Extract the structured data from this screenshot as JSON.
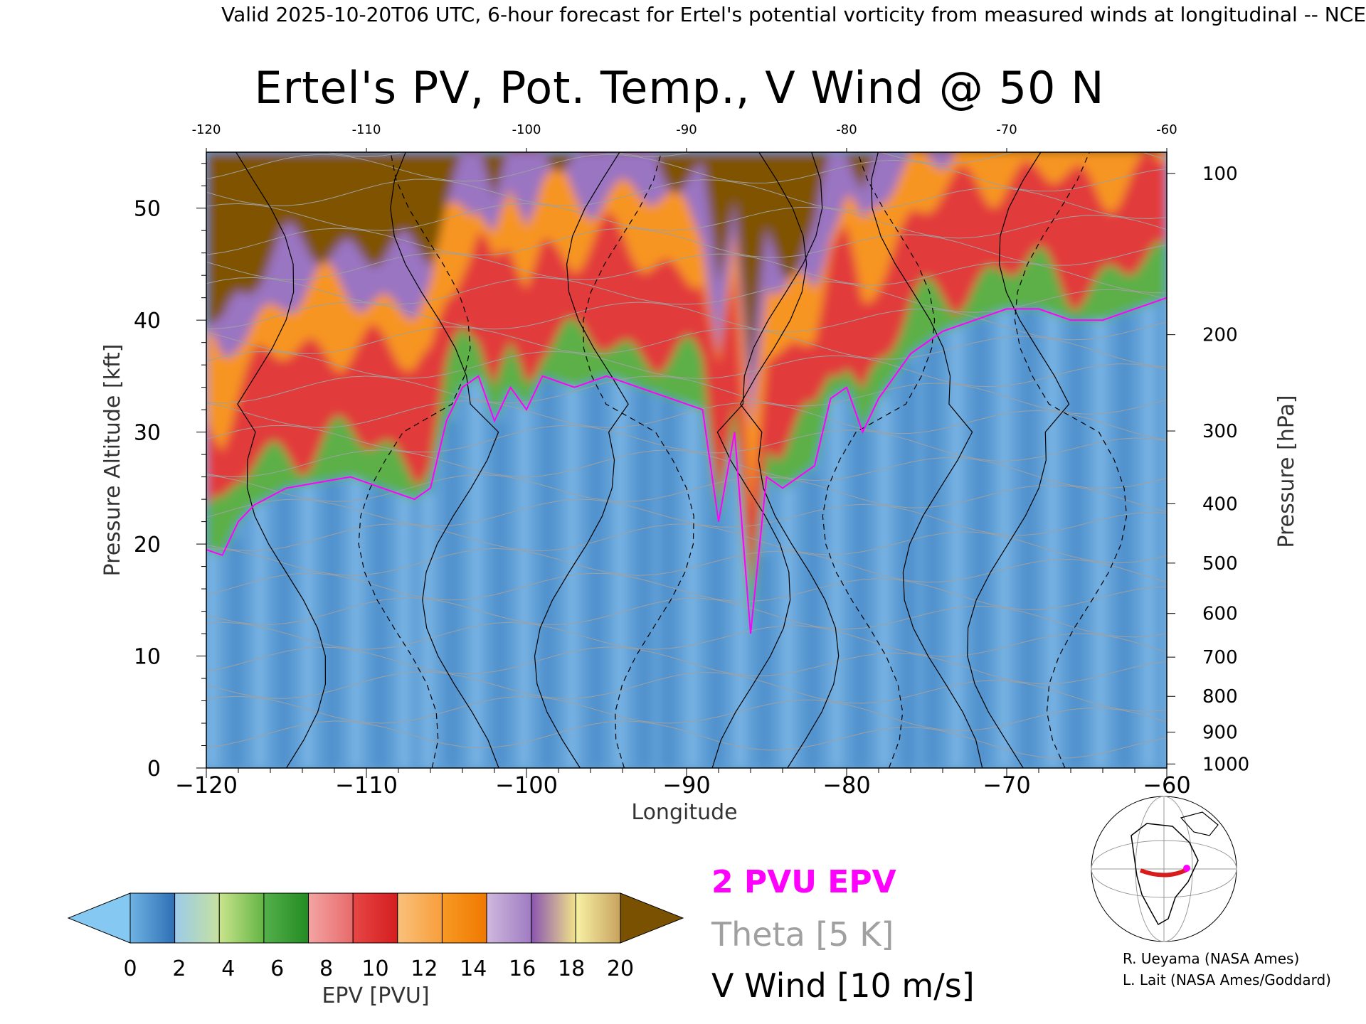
{
  "header": "Valid 2025-10-20T06 UTC, 6-hour forecast for Ertel's potential vorticity from measured winds at longitudinal -- NCE",
  "chart_data": {
    "type": "heatmap",
    "title": "Ertel's PV, Pot. Temp., V Wind @ 50 N",
    "xlabel": "Longitude",
    "ylabel": "Pressure Altitude [kft]",
    "y2label": "Pressure [hPa]",
    "xlim": [
      -120,
      -60
    ],
    "ylim": [
      0,
      55
    ],
    "x_ticks": [
      -120,
      -110,
      -100,
      -90,
      -80,
      -70,
      -60
    ],
    "x_tick_labels": [
      "−120",
      "−110",
      "−100",
      "−90",
      "−80",
      "−70",
      "−60"
    ],
    "top_tick_labels": [
      "-120",
      "-110",
      "-100",
      "-90",
      "-80",
      "-70",
      "-60"
    ],
    "y_ticks": [
      0,
      10,
      20,
      30,
      40,
      50
    ],
    "y_tick_labels": [
      "0",
      "10",
      "20",
      "30",
      "40",
      "50"
    ],
    "pressure_ticks": [
      {
        "hpa": 100,
        "kft": 53.1,
        "label": "100"
      },
      {
        "hpa": 200,
        "kft": 38.7,
        "label": "200"
      },
      {
        "hpa": 300,
        "kft": 30.1,
        "label": "300"
      },
      {
        "hpa": 400,
        "kft": 23.6,
        "label": "400"
      },
      {
        "hpa": 500,
        "kft": 18.3,
        "label": "500"
      },
      {
        "hpa": 600,
        "kft": 13.8,
        "label": "600"
      },
      {
        "hpa": 700,
        "kft": 9.9,
        "label": "700"
      },
      {
        "hpa": 800,
        "kft": 6.4,
        "label": "800"
      },
      {
        "hpa": 900,
        "kft": 3.2,
        "label": "900"
      },
      {
        "hpa": 1000,
        "kft": 0.36,
        "label": "1000"
      }
    ],
    "tropopause_2pvu_kft": [
      {
        "lon": -120,
        "kft": 19.5
      },
      {
        "lon": -119,
        "kft": 19
      },
      {
        "lon": -118,
        "kft": 22
      },
      {
        "lon": -117,
        "kft": 23.5
      },
      {
        "lon": -115,
        "kft": 25
      },
      {
        "lon": -113,
        "kft": 25.5
      },
      {
        "lon": -111,
        "kft": 26
      },
      {
        "lon": -109,
        "kft": 25
      },
      {
        "lon": -107,
        "kft": 24
      },
      {
        "lon": -106,
        "kft": 25
      },
      {
        "lon": -105,
        "kft": 31
      },
      {
        "lon": -104,
        "kft": 34
      },
      {
        "lon": -103,
        "kft": 35
      },
      {
        "lon": -102,
        "kft": 31
      },
      {
        "lon": -101,
        "kft": 34
      },
      {
        "lon": -100,
        "kft": 32
      },
      {
        "lon": -99,
        "kft": 35
      },
      {
        "lon": -97,
        "kft": 34
      },
      {
        "lon": -95,
        "kft": 35
      },
      {
        "lon": -93,
        "kft": 34
      },
      {
        "lon": -91,
        "kft": 33
      },
      {
        "lon": -89,
        "kft": 32
      },
      {
        "lon": -88,
        "kft": 22
      },
      {
        "lon": -87,
        "kft": 30
      },
      {
        "lon": -86,
        "kft": 12
      },
      {
        "lon": -85,
        "kft": 26
      },
      {
        "lon": -84,
        "kft": 25
      },
      {
        "lon": -82,
        "kft": 27
      },
      {
        "lon": -81,
        "kft": 33
      },
      {
        "lon": -80,
        "kft": 34
      },
      {
        "lon": -79,
        "kft": 30
      },
      {
        "lon": -78,
        "kft": 33
      },
      {
        "lon": -77,
        "kft": 35
      },
      {
        "lon": -76,
        "kft": 37
      },
      {
        "lon": -74,
        "kft": 39
      },
      {
        "lon": -72,
        "kft": 40
      },
      {
        "lon": -70,
        "kft": 41
      },
      {
        "lon": -68,
        "kft": 41
      },
      {
        "lon": -66,
        "kft": 40
      },
      {
        "lon": -64,
        "kft": 40
      },
      {
        "lon": -62,
        "kft": 41
      },
      {
        "lon": -60,
        "kft": 42
      }
    ],
    "colorbar": {
      "label": "EPV [PVU]",
      "ticks": [
        "0",
        "2",
        "4",
        "6",
        "8",
        "10",
        "12",
        "14",
        "16",
        "18",
        "20"
      ],
      "under_color": "#85c9f2",
      "over_color": "#7a5100",
      "bins": [
        [
          "#6fb3e3",
          "#2f6fb5"
        ],
        [
          "#9ccbea",
          "#c6e1a0"
        ],
        [
          "#c9e48c",
          "#64b544"
        ],
        [
          "#55b04b",
          "#238b22"
        ],
        [
          "#f3a4a4",
          "#e86a6a"
        ],
        [
          "#e74646",
          "#d41e1e"
        ],
        [
          "#f9c17c",
          "#f89e3a"
        ],
        [
          "#f79a24",
          "#f07800"
        ],
        [
          "#cfb8de",
          "#9f7cc2"
        ],
        [
          "#8a55b1",
          "#f1e38a"
        ],
        [
          "#f7f2a4",
          "#c8a35e"
        ]
      ]
    },
    "legend": {
      "pv_line": "2 PVU EPV",
      "pv_color": "#ff00ff",
      "theta": "Theta [5 K]",
      "theta_color": "#a0a0a0",
      "wind": "V Wind [10 m/s]",
      "wind_color": "#000000"
    }
  },
  "credits": [
    "R. Ueyama (NASA Ames)",
    "L. Lait (NASA Ames/Goddard)"
  ],
  "colors": {
    "strat_blue": "#5b9bd5",
    "trop_green": "#52b043",
    "red": "#e02828",
    "orange": "#f7941d",
    "purple": "#9467bd",
    "brown": "#7f5200"
  }
}
